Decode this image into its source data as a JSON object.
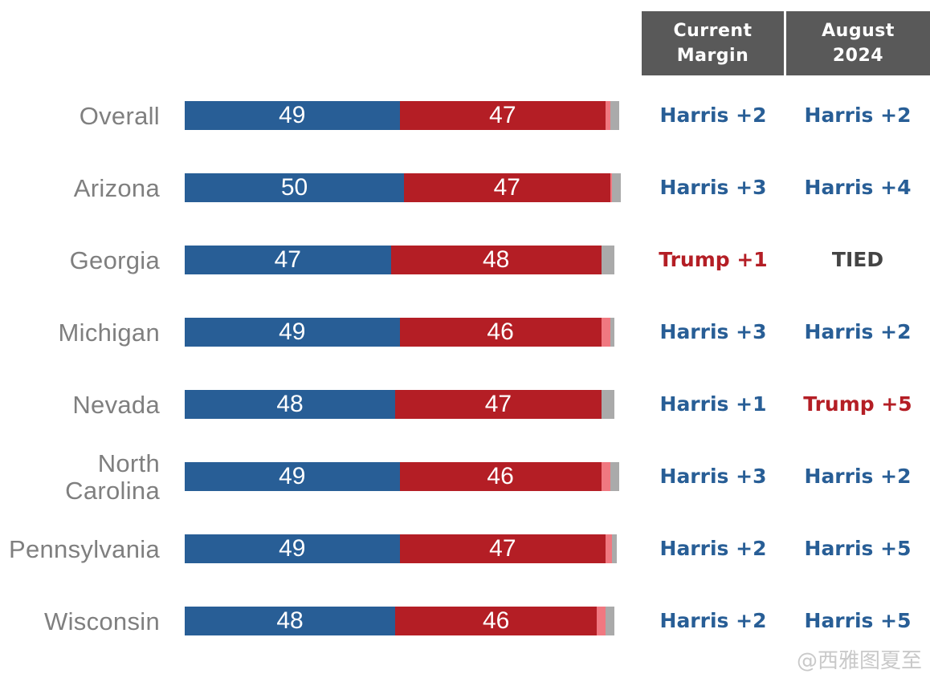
{
  "colors": {
    "harris": "#285e96",
    "trump": "#b41e25",
    "lean_trump": "#f07880",
    "other": "#aaaaaa",
    "tied": "#444444"
  },
  "headers": {
    "current_line1": "Current",
    "current_line2": "Margin",
    "august_line1": "August",
    "august_line2": "2024"
  },
  "watermark": "@西雅图夏至",
  "chart_data": {
    "type": "bar",
    "orientation": "horizontal",
    "stacked": true,
    "title": "",
    "xlabel": "",
    "ylabel": "",
    "xlim": [
      0,
      100
    ],
    "categories": [
      "Overall",
      "Arizona",
      "Georgia",
      "Michigan",
      "Nevada",
      "North Carolina",
      "Pennsylvania",
      "Wisconsin"
    ],
    "category_lines": [
      [
        "Overall"
      ],
      [
        "Arizona"
      ],
      [
        "Georgia"
      ],
      [
        "Michigan"
      ],
      [
        "Nevada"
      ],
      [
        "North",
        "Carolina"
      ],
      [
        "Pennsylvania"
      ],
      [
        "Wisconsin"
      ]
    ],
    "series": [
      {
        "key": "harris",
        "values": [
          49,
          50,
          47,
          49,
          48,
          49,
          49,
          48
        ],
        "labeled": true
      },
      {
        "key": "trump",
        "values": [
          47,
          47,
          48,
          46,
          47,
          46,
          47,
          46
        ],
        "labeled": true
      },
      {
        "key": "lean_trump",
        "values": [
          1,
          0.5,
          0,
          2,
          0,
          2,
          1.5,
          2
        ],
        "labeled": false
      },
      {
        "key": "other",
        "values": [
          2,
          2,
          3,
          1,
          3,
          2,
          1,
          2
        ],
        "labeled": false
      }
    ],
    "current_margin": [
      {
        "text": "Harris +2",
        "party": "harris"
      },
      {
        "text": "Harris +3",
        "party": "harris"
      },
      {
        "text": "Trump +1",
        "party": "trump"
      },
      {
        "text": "Harris +3",
        "party": "harris"
      },
      {
        "text": "Harris +1",
        "party": "harris"
      },
      {
        "text": "Harris +3",
        "party": "harris"
      },
      {
        "text": "Harris +2",
        "party": "harris"
      },
      {
        "text": "Harris +2",
        "party": "harris"
      }
    ],
    "august_2024": [
      {
        "text": "Harris +2",
        "party": "harris"
      },
      {
        "text": "Harris +4",
        "party": "harris"
      },
      {
        "text": "TIED",
        "party": "tied"
      },
      {
        "text": "Harris +2",
        "party": "harris"
      },
      {
        "text": "Trump +5",
        "party": "trump"
      },
      {
        "text": "Harris +2",
        "party": "harris"
      },
      {
        "text": "Harris +5",
        "party": "harris"
      },
      {
        "text": "Harris +5",
        "party": "harris"
      }
    ]
  }
}
